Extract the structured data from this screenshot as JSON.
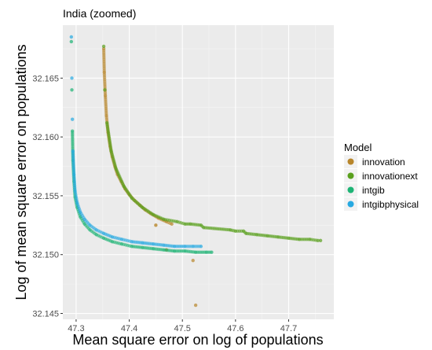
{
  "chart_data": {
    "type": "scatter",
    "title": "India (zoomed)",
    "xlabel": "Mean square error on log of populations",
    "ylabel": "Log of mean square error on populations",
    "xlim": [
      47.275,
      47.785
    ],
    "ylim": [
      32.1445,
      32.1695
    ],
    "xticks": [
      47.3,
      47.4,
      47.5,
      47.6,
      47.7
    ],
    "xtick_labels": [
      "47.3",
      "47.4",
      "47.5",
      "47.6",
      "47.7"
    ],
    "yticks": [
      32.145,
      32.15,
      32.155,
      32.16,
      32.165
    ],
    "ytick_labels": [
      "32.145",
      "32.150",
      "32.155",
      "32.160",
      "32.165"
    ],
    "grid": true,
    "legend": {
      "title": "Model",
      "position": "right",
      "entries": [
        {
          "name": "innovation",
          "color": "#B8862B"
        },
        {
          "name": "innovationext",
          "color": "#5AA01E"
        },
        {
          "name": "intgib",
          "color": "#1DB475"
        },
        {
          "name": "intgibphysical",
          "color": "#27A9E1"
        }
      ]
    },
    "series": [
      {
        "name": "innovation",
        "color": "#B8862B",
        "points": [
          [
            47.352,
            32.1675
          ],
          [
            47.353,
            32.1655
          ],
          [
            47.355,
            32.1635
          ],
          [
            47.357,
            32.1618
          ],
          [
            47.36,
            32.1604
          ],
          [
            47.364,
            32.1592
          ],
          [
            47.368,
            32.1583
          ],
          [
            47.373,
            32.1575
          ],
          [
            47.378,
            32.1568
          ],
          [
            47.385,
            32.1562
          ],
          [
            47.392,
            32.1556
          ],
          [
            47.4,
            32.1551
          ],
          [
            47.41,
            32.1546
          ],
          [
            47.42,
            32.1542
          ],
          [
            47.43,
            32.1538
          ],
          [
            47.44,
            32.1535
          ],
          [
            47.455,
            32.1531
          ],
          [
            47.47,
            32.1528
          ],
          [
            47.48,
            32.1526
          ],
          [
            47.47,
            32.1504
          ],
          [
            47.52,
            32.1495
          ],
          [
            47.525,
            32.1457
          ],
          [
            47.45,
            32.1525
          ]
        ]
      },
      {
        "name": "innovationext",
        "color": "#5AA01E",
        "points": [
          [
            47.352,
            32.1677
          ],
          [
            47.354,
            32.164
          ],
          [
            47.358,
            32.1612
          ],
          [
            47.366,
            32.1588
          ],
          [
            47.375,
            32.1573
          ],
          [
            47.39,
            32.1558
          ],
          [
            47.405,
            32.1548
          ],
          [
            47.425,
            32.154
          ],
          [
            47.445,
            32.1534
          ],
          [
            47.465,
            32.153
          ],
          [
            47.49,
            32.1528
          ],
          [
            47.505,
            32.1526
          ],
          [
            47.515,
            32.1526
          ],
          [
            47.535,
            32.1525
          ],
          [
            47.54,
            32.1523
          ],
          [
            47.59,
            32.1521
          ],
          [
            47.6,
            32.152
          ],
          [
            47.615,
            32.152
          ],
          [
            47.62,
            32.1518
          ],
          [
            47.64,
            32.1517
          ],
          [
            47.66,
            32.1516
          ],
          [
            47.68,
            32.1515
          ],
          [
            47.7,
            32.1514
          ],
          [
            47.72,
            32.1513
          ],
          [
            47.74,
            32.1513
          ],
          [
            47.755,
            32.1512
          ],
          [
            47.76,
            32.1512
          ]
        ]
      },
      {
        "name": "intgib",
        "color": "#1DB475",
        "points": [
          [
            47.291,
            32.1681
          ],
          [
            47.292,
            32.164
          ],
          [
            47.293,
            32.1605
          ],
          [
            47.294,
            32.158
          ],
          [
            47.296,
            32.1562
          ],
          [
            47.298,
            32.1549
          ],
          [
            47.302,
            32.154
          ],
          [
            47.308,
            32.1532
          ],
          [
            47.316,
            32.1526
          ],
          [
            47.326,
            32.1521
          ],
          [
            47.338,
            32.1517
          ],
          [
            47.352,
            32.1514
          ],
          [
            47.368,
            32.1511
          ],
          [
            47.386,
            32.1509
          ],
          [
            47.405,
            32.1507
          ],
          [
            47.425,
            32.1506
          ],
          [
            47.445,
            32.1505
          ],
          [
            47.465,
            32.1504
          ],
          [
            47.485,
            32.1503
          ],
          [
            47.505,
            32.1503
          ],
          [
            47.525,
            32.1502
          ],
          [
            47.545,
            32.1502
          ],
          [
            47.555,
            32.1502
          ]
        ]
      },
      {
        "name": "intgibphysical",
        "color": "#27A9E1",
        "points": [
          [
            47.291,
            32.1685
          ],
          [
            47.292,
            32.165
          ],
          [
            47.293,
            32.1615
          ],
          [
            47.294,
            32.1588
          ],
          [
            47.296,
            32.1568
          ],
          [
            47.298,
            32.1554
          ],
          [
            47.302,
            32.1544
          ],
          [
            47.308,
            32.1536
          ],
          [
            47.316,
            32.153
          ],
          [
            47.326,
            32.1525
          ],
          [
            47.338,
            32.1521
          ],
          [
            47.352,
            32.1518
          ],
          [
            47.368,
            32.1515
          ],
          [
            47.386,
            32.1513
          ],
          [
            47.405,
            32.1511
          ],
          [
            47.425,
            32.151
          ],
          [
            47.445,
            32.1509
          ],
          [
            47.465,
            32.1508
          ],
          [
            47.485,
            32.1507
          ],
          [
            47.505,
            32.1507
          ],
          [
            47.52,
            32.1507
          ],
          [
            47.535,
            32.1507
          ]
        ]
      }
    ]
  }
}
